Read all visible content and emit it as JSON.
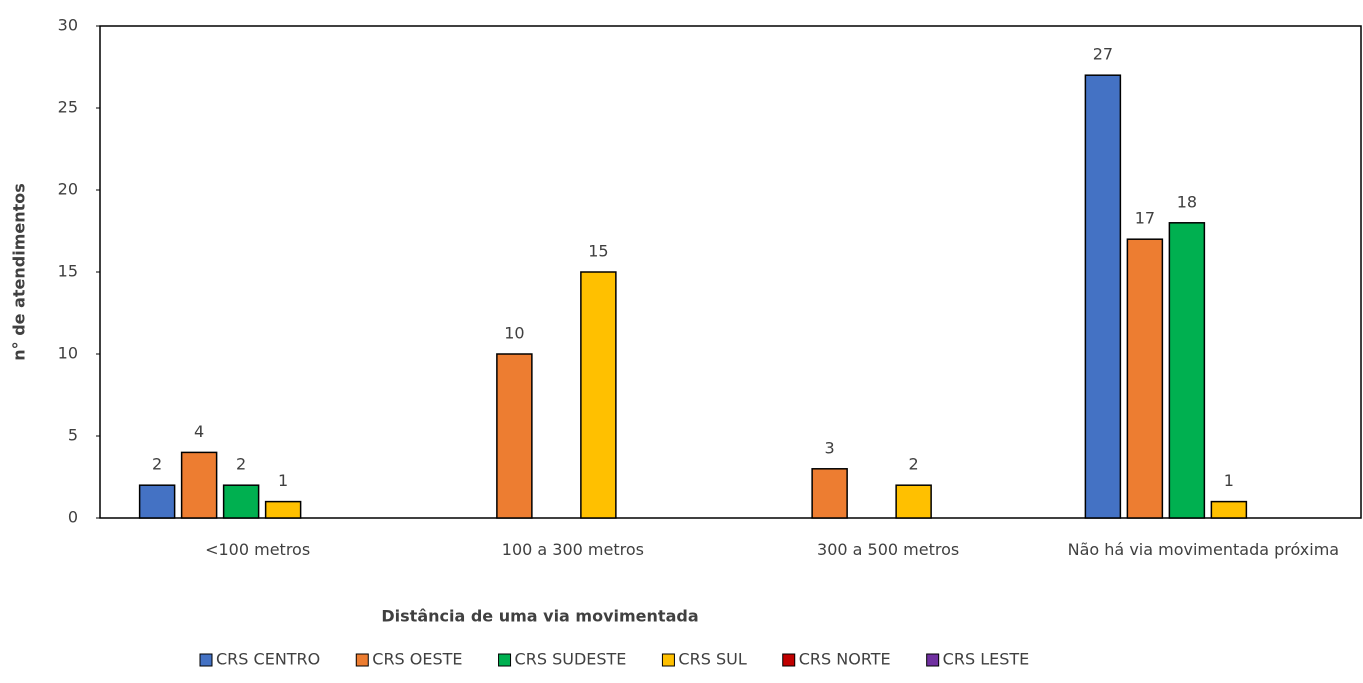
{
  "chart_data": {
    "type": "bar",
    "categories": [
      "<100 metros",
      "100 a 300 metros",
      "300 a 500 metros",
      "Não há via movimentada próxima"
    ],
    "series": [
      {
        "name": "CRS CENTRO",
        "color": "#4472c4",
        "values": [
          2,
          null,
          null,
          27
        ]
      },
      {
        "name": "CRS OESTE",
        "color": "#ed7d31",
        "values": [
          4,
          10,
          3,
          17
        ]
      },
      {
        "name": "CRS SUDESTE",
        "color": "#00b050",
        "values": [
          2,
          null,
          null,
          18
        ]
      },
      {
        "name": "CRS SUL",
        "color": "#ffc000",
        "values": [
          1,
          15,
          2,
          1
        ]
      },
      {
        "name": "CRS NORTE",
        "color": "#c00000",
        "values": [
          null,
          null,
          null,
          null
        ]
      },
      {
        "name": "CRS LESTE",
        "color": "#7030a0",
        "values": [
          null,
          null,
          null,
          null
        ]
      }
    ],
    "xlabel": "Distância  de uma via movimentada",
    "ylabel": "n° de atendimentos",
    "ylim": [
      0,
      30
    ],
    "yticks": [
      0,
      5,
      10,
      15,
      20,
      25,
      30
    ],
    "grid": false,
    "legend": "bottom"
  }
}
